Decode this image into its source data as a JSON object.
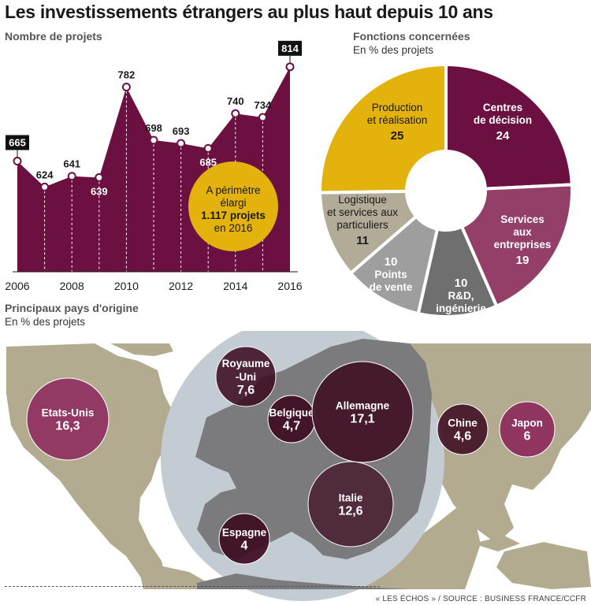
{
  "title": "Les investissements étrangers au plus haut depuis 10 ans",
  "source": "« LES ÉCHOS » / SOURCE : BUSINESS FRANCE/CCFR",
  "colors": {
    "wine": "#6b1040",
    "wine_dark": "#3e0c22",
    "mauve": "#933f68",
    "gold": "#e3b20c",
    "taupe": "#b2ab98",
    "grey_mid": "#9e9e9e",
    "grey_dark": "#6f6f6f",
    "map_land": "#b2ab8f",
    "map_zoom": "#c4ccd3",
    "map_zoom_land": "#7b7b7d",
    "bubble_far": "#8e2e5e"
  },
  "chart_data": [
    {
      "type": "area",
      "subtitle": "Nombre de projets",
      "x": [
        2006,
        2007,
        2008,
        2009,
        2010,
        2011,
        2012,
        2013,
        2014,
        2015,
        2016
      ],
      "values": [
        665,
        624,
        641,
        639,
        782,
        698,
        693,
        685,
        740,
        734,
        814
      ],
      "value_labels": [
        "665",
        "624",
        "641",
        "639",
        "782",
        "698",
        "693",
        "685",
        "740",
        "734",
        "814"
      ],
      "highlighted": [
        "665",
        "814"
      ],
      "x_tick_labels": [
        "2006",
        "2008",
        "2010",
        "2012",
        "2014",
        "2016"
      ],
      "x_ticks": [
        2006,
        2008,
        2010,
        2012,
        2014,
        2016
      ],
      "annotation": {
        "line1": "A périmètre",
        "line2": "élargi",
        "line3": "1.117 projets",
        "line4": "en 2016"
      }
    },
    {
      "type": "pie",
      "subtitle": "Fonctions concernées",
      "unit_note": "En % des projets",
      "labels": [
        "Centres de décision",
        "Services aux entreprises",
        "R&D, ingénierie",
        "Points de vente",
        "Logistique et services aux particuliers",
        "Production et réalisation"
      ],
      "values": [
        24,
        19,
        10,
        10,
        11,
        25
      ],
      "slices": [
        {
          "lines": [
            "Centres",
            "de décision"
          ],
          "value": "24",
          "color": "#6b1040",
          "text": "#ffffff"
        },
        {
          "lines": [
            "Services",
            "aux",
            "entreprises"
          ],
          "value": "19",
          "color": "#933f68",
          "text": "#ffffff"
        },
        {
          "lines": [
            "R&D,",
            "ingénierie"
          ],
          "value": "10",
          "color": "#6f6f6f",
          "text": "#ffffff",
          "value_first": true
        },
        {
          "lines": [
            "Points",
            "de vente"
          ],
          "value": "10",
          "color": "#9e9e9e",
          "text": "#ffffff",
          "value_first": true
        },
        {
          "lines": [
            "Logistique",
            "et services aux",
            "particuliers"
          ],
          "value": "11",
          "color": "#b2ab98",
          "text": "#1a1a1a"
        },
        {
          "lines": [
            "Production",
            "et réalisation"
          ],
          "value": "25",
          "color": "#e3b20c",
          "text": "#1a1a1a"
        }
      ]
    },
    {
      "type": "bubble_map",
      "subtitle": "Principaux pays d'origine",
      "unit_note": "En % des projets",
      "countries": [
        {
          "name": "Etats-Unis",
          "value": 16.3,
          "label": "Etats-Unis",
          "value_label": "16,3"
        },
        {
          "name": "Royaume-Uni",
          "value": 7.6,
          "label_lines": [
            "Royaume",
            "-Uni"
          ],
          "value_label": "7,6"
        },
        {
          "name": "Belgique",
          "value": 4.7,
          "label": "Belgique",
          "value_label": "4,7"
        },
        {
          "name": "Allemagne",
          "value": 17.1,
          "label": "Allemagne",
          "value_label": "17,1"
        },
        {
          "name": "Espagne",
          "value": 4,
          "label": "Espagne",
          "value_label": "4"
        },
        {
          "name": "Italie",
          "value": 12.6,
          "label": "Italie",
          "value_label": "12,6"
        },
        {
          "name": "Chine",
          "value": 4.6,
          "label": "Chine",
          "value_label": "4,6"
        },
        {
          "name": "Japon",
          "value": 6,
          "label": "Japon",
          "value_label": "6"
        }
      ]
    }
  ]
}
